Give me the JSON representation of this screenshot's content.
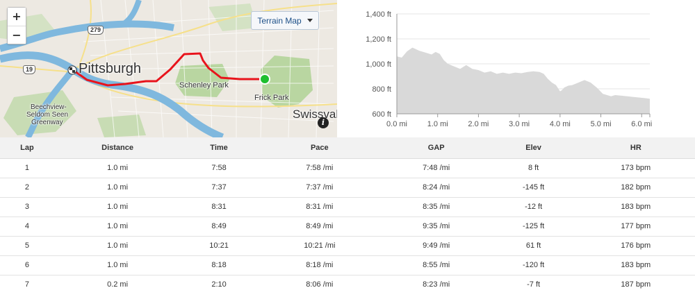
{
  "map": {
    "zoom_in_label": "+",
    "zoom_out_label": "−",
    "terrain_label": "Terrain Map",
    "labels": {
      "pittsburgh": "Pittsburgh",
      "schenley": "Schenley Park",
      "frick": "Frick Park",
      "swissvale": "Swissval",
      "beechview_1": "Beechview-",
      "beechview_2": "Seldom Seen",
      "beechview_3": "Greenway",
      "route_279": "279",
      "route_19": "19"
    },
    "info_label": "i",
    "colors": {
      "route": "#e8141c",
      "start": "#1fbf2f",
      "river": "#7fb8de",
      "park": "#b9d6a1"
    }
  },
  "chart_data": {
    "type": "area",
    "xlabel": "",
    "ylabel": "",
    "xlim": [
      0,
      6.2
    ],
    "ylim": [
      600,
      1400
    ],
    "x_ticks": [
      "0.0 mi",
      "1.0 mi",
      "2.0 mi",
      "3.0 mi",
      "4.0 mi",
      "5.0 mi",
      "6.0 mi"
    ],
    "x_tick_values": [
      0,
      1,
      2,
      3,
      4,
      5,
      6
    ],
    "y_ticks": [
      "600 ft",
      "800 ft",
      "1,000 ft",
      "1,200 ft",
      "1,400 ft"
    ],
    "y_tick_values": [
      600,
      800,
      1000,
      1200,
      1400
    ],
    "fill_color": "#d9d9d9",
    "x": [
      0,
      0.12,
      0.25,
      0.38,
      0.45,
      0.55,
      0.7,
      0.85,
      0.95,
      1.05,
      1.15,
      1.25,
      1.4,
      1.55,
      1.7,
      1.85,
      2.0,
      2.15,
      2.3,
      2.45,
      2.6,
      2.75,
      2.9,
      3.05,
      3.2,
      3.35,
      3.5,
      3.6,
      3.7,
      3.8,
      3.9,
      4.0,
      4.05,
      4.1,
      4.2,
      4.3,
      4.45,
      4.6,
      4.75,
      4.9,
      5.05,
      5.15,
      5.25,
      5.35,
      5.5,
      5.65,
      5.8,
      5.95,
      6.1,
      6.2
    ],
    "y": [
      1060,
      1050,
      1100,
      1130,
      1120,
      1105,
      1090,
      1075,
      1095,
      1080,
      1030,
      1000,
      980,
      960,
      990,
      960,
      950,
      930,
      940,
      920,
      930,
      920,
      930,
      925,
      935,
      940,
      935,
      920,
      880,
      850,
      830,
      780,
      790,
      810,
      825,
      830,
      850,
      870,
      850,
      810,
      760,
      750,
      740,
      750,
      745,
      740,
      735,
      730,
      725,
      720
    ]
  },
  "table": {
    "headers": [
      "Lap",
      "Distance",
      "Time",
      "Pace",
      "GAP",
      "Elev",
      "HR"
    ],
    "rows": [
      [
        "1",
        "1.0 mi",
        "7:58",
        "7:58 /mi",
        "7:48 /mi",
        "8 ft",
        "173 bpm"
      ],
      [
        "2",
        "1.0 mi",
        "7:37",
        "7:37 /mi",
        "8:24 /mi",
        "-145 ft",
        "182 bpm"
      ],
      [
        "3",
        "1.0 mi",
        "8:31",
        "8:31 /mi",
        "8:35 /mi",
        "-12 ft",
        "183 bpm"
      ],
      [
        "4",
        "1.0 mi",
        "8:49",
        "8:49 /mi",
        "9:35 /mi",
        "-125 ft",
        "177 bpm"
      ],
      [
        "5",
        "1.0 mi",
        "10:21",
        "10:21 /mi",
        "9:49 /mi",
        "61 ft",
        "176 bpm"
      ],
      [
        "6",
        "1.0 mi",
        "8:18",
        "8:18 /mi",
        "8:55 /mi",
        "-120 ft",
        "183 bpm"
      ],
      [
        "7",
        "0.2 mi",
        "2:10",
        "8:06 /mi",
        "8:23 /mi",
        "-7 ft",
        "187 bpm"
      ]
    ]
  }
}
